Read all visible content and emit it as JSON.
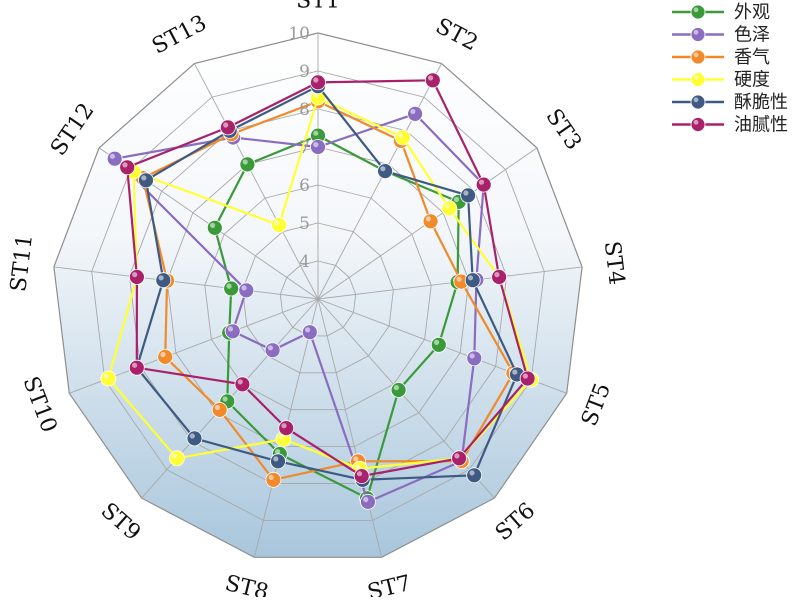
{
  "chart_data": {
    "type": "radar",
    "categories": [
      "ST1",
      "ST2",
      "ST3",
      "ST4",
      "ST5",
      "ST6",
      "ST7",
      "ST8",
      "ST9",
      "ST10",
      "ST11",
      "ST12",
      "ST13"
    ],
    "rlim": [
      3,
      10
    ],
    "ticks": [
      "4",
      "5",
      "6",
      "7",
      "8",
      "9",
      "10"
    ],
    "grid": true,
    "legend_position": "top-right",
    "series": [
      {
        "name": "外观",
        "color": "#3a9a3a",
        "values": [
          7.3,
          6.8,
          7.5,
          6.7,
          6.4,
          6.2,
          8.4,
          7.2,
          6.6,
          5.5,
          5.3,
          6.3,
          7.0
        ]
      },
      {
        "name": "色泽",
        "color": "#8a6cc0",
        "values": [
          7.0,
          8.5,
          8.3,
          7.2,
          7.4,
          8.7,
          8.5,
          3.9,
          4.8,
          5.4,
          4.9,
          9.5,
          7.8
        ]
      },
      {
        "name": "香气",
        "color": "#f08a2a",
        "values": [
          8.2,
          7.7,
          6.6,
          6.8,
          8.5,
          8.7,
          7.4,
          7.9,
          6.9,
          7.3,
          7.0,
          8.6,
          7.9
        ]
      },
      {
        "name": "硬度",
        "color": "#ffff33",
        "values": [
          8.3,
          7.8,
          7.2,
          7.8,
          9.0,
          8.6,
          7.6,
          6.8,
          8.6,
          8.9,
          7.8,
          8.9,
          5.2
        ]
      },
      {
        "name": "酥脆性",
        "color": "#3e5a82",
        "values": [
          8.6,
          6.8,
          7.8,
          7.1,
          8.6,
          9.2,
          7.9,
          7.4,
          7.9,
          8.1,
          7.1,
          8.5,
          8.0
        ]
      },
      {
        "name": "油腻性",
        "color": "#a8216a",
        "values": [
          8.7,
          9.5,
          8.3,
          7.8,
          8.9,
          8.6,
          7.8,
          6.5,
          6.0,
          8.1,
          7.8,
          9.1,
          8.1
        ]
      }
    ]
  }
}
